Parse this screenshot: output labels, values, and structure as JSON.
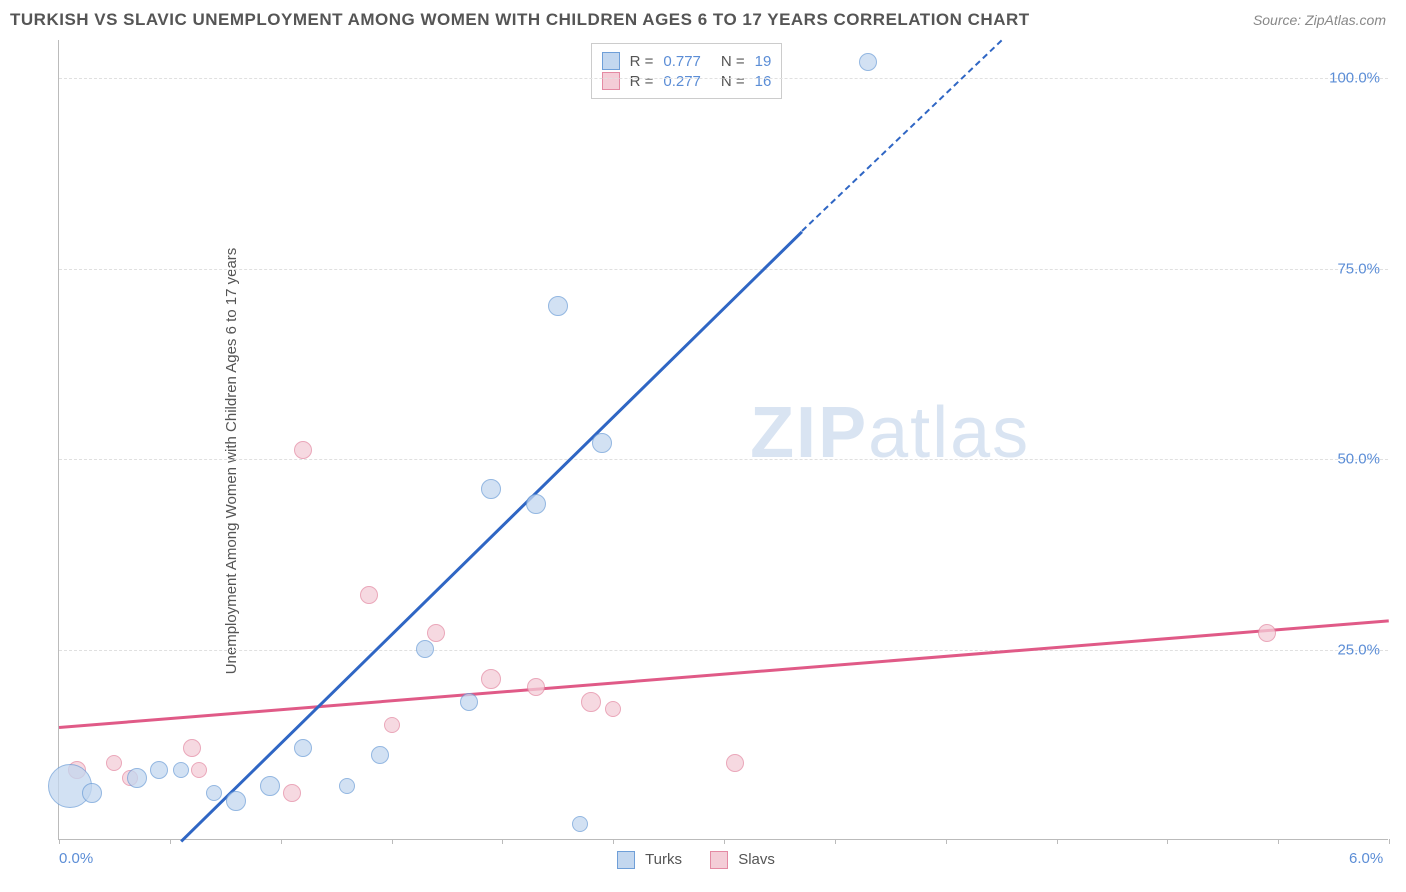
{
  "title": "TURKISH VS SLAVIC UNEMPLOYMENT AMONG WOMEN WITH CHILDREN AGES 6 TO 17 YEARS CORRELATION CHART",
  "source": "Source: ZipAtlas.com",
  "ylabel": "Unemployment Among Women with Children Ages 6 to 17 years",
  "watermark_a": "ZIP",
  "watermark_b": "atlas",
  "chart": {
    "type": "scatter",
    "xlim": [
      0,
      6.0
    ],
    "ylim": [
      0,
      105
    ],
    "xticks": [
      0,
      0.5,
      1.0,
      1.5,
      2.0,
      2.5,
      3.0,
      3.5,
      4.0,
      4.5,
      5.0,
      5.5,
      6.0
    ],
    "xtick_labels": {
      "0": "0.0%",
      "6": "6.0%"
    },
    "yticks": [
      25,
      50,
      75,
      100
    ],
    "ytick_labels": [
      "25.0%",
      "50.0%",
      "75.0%",
      "100.0%"
    ],
    "grid_color": "#e0e0e0",
    "axis_color": "#bbbbbb",
    "label_color": "#5b8dd6",
    "background_color": "#ffffff"
  },
  "series": {
    "turks": {
      "label": "Turks",
      "fill": "#c3d7ef",
      "stroke": "#6f9fd8",
      "line_color": "#2f66c4",
      "R": "0.777",
      "N": "19",
      "regression": {
        "x1": 0.55,
        "y1": 0,
        "x2": 3.35,
        "y2": 80
      },
      "regression_dash": {
        "x1": 3.35,
        "y1": 80,
        "x2": 4.25,
        "y2": 105
      },
      "points": [
        {
          "x": 0.05,
          "y": 7,
          "r": 22
        },
        {
          "x": 0.15,
          "y": 6,
          "r": 10
        },
        {
          "x": 0.35,
          "y": 8,
          "r": 10
        },
        {
          "x": 0.45,
          "y": 9,
          "r": 9
        },
        {
          "x": 0.55,
          "y": 9,
          "r": 8
        },
        {
          "x": 0.7,
          "y": 6,
          "r": 8
        },
        {
          "x": 0.8,
          "y": 5,
          "r": 10
        },
        {
          "x": 0.95,
          "y": 7,
          "r": 10
        },
        {
          "x": 1.1,
          "y": 12,
          "r": 9
        },
        {
          "x": 1.3,
          "y": 7,
          "r": 8
        },
        {
          "x": 1.45,
          "y": 11,
          "r": 9
        },
        {
          "x": 1.65,
          "y": 25,
          "r": 9
        },
        {
          "x": 1.85,
          "y": 18,
          "r": 9
        },
        {
          "x": 1.95,
          "y": 46,
          "r": 10
        },
        {
          "x": 2.15,
          "y": 44,
          "r": 10
        },
        {
          "x": 2.25,
          "y": 70,
          "r": 10
        },
        {
          "x": 2.35,
          "y": 2,
          "r": 8
        },
        {
          "x": 2.45,
          "y": 52,
          "r": 10
        },
        {
          "x": 3.65,
          "y": 102,
          "r": 9
        }
      ]
    },
    "slavs": {
      "label": "Slavs",
      "fill": "#f4cdd7",
      "stroke": "#e48aa3",
      "line_color": "#e05a87",
      "R": "0.277",
      "N": "16",
      "regression": {
        "x1": 0,
        "y1": 15,
        "x2": 6.0,
        "y2": 29
      },
      "points": [
        {
          "x": 0.08,
          "y": 9,
          "r": 9
        },
        {
          "x": 0.25,
          "y": 10,
          "r": 8
        },
        {
          "x": 0.32,
          "y": 8,
          "r": 8
        },
        {
          "x": 0.6,
          "y": 12,
          "r": 9
        },
        {
          "x": 0.63,
          "y": 9,
          "r": 8
        },
        {
          "x": 1.05,
          "y": 6,
          "r": 9
        },
        {
          "x": 1.1,
          "y": 51,
          "r": 9
        },
        {
          "x": 1.4,
          "y": 32,
          "r": 9
        },
        {
          "x": 1.5,
          "y": 15,
          "r": 8
        },
        {
          "x": 1.7,
          "y": 27,
          "r": 9
        },
        {
          "x": 1.95,
          "y": 21,
          "r": 10
        },
        {
          "x": 2.15,
          "y": 20,
          "r": 9
        },
        {
          "x": 2.4,
          "y": 18,
          "r": 10
        },
        {
          "x": 2.5,
          "y": 17,
          "r": 8
        },
        {
          "x": 3.05,
          "y": 10,
          "r": 9
        },
        {
          "x": 5.45,
          "y": 27,
          "r": 9
        }
      ]
    }
  },
  "legend_top": {
    "r_label": "R =",
    "n_label": "N ="
  }
}
